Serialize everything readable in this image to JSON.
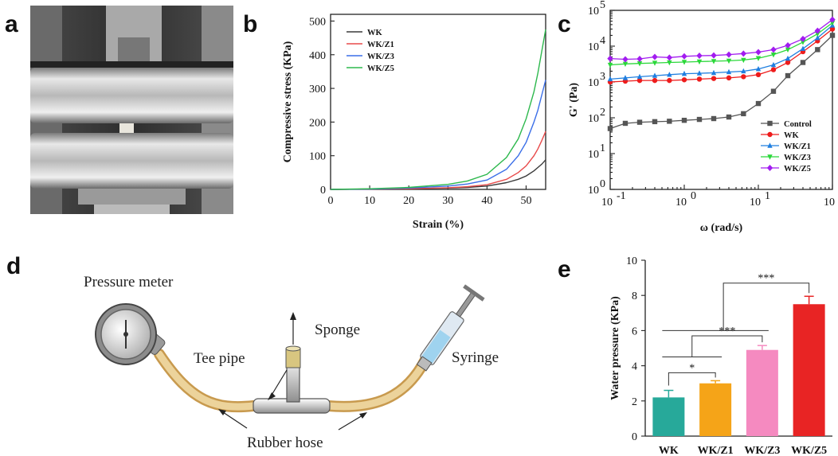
{
  "panels": {
    "a": "a",
    "b": "b",
    "c": "c",
    "d": "d",
    "e": "e"
  },
  "diagram": {
    "pressure_meter": "Pressure meter",
    "sponge": "Sponge",
    "tee_pipe": "Tee pipe",
    "syringe": "Syringe",
    "rubber_hose": "Rubber hose"
  },
  "chart_data": [
    {
      "type": "line",
      "ylabel": "Compressive stress (KPa)",
      "xlabel": "Strain (%)",
      "xlim": [
        0,
        55
      ],
      "ylim": [
        0,
        520
      ],
      "xticks": [
        0,
        10,
        20,
        30,
        40,
        50
      ],
      "yticks": [
        0,
        100,
        200,
        300,
        400,
        500
      ],
      "legend_position": "top-left",
      "series": [
        {
          "name": "WK",
          "color": "#3a3a3a",
          "x": [
            0,
            10,
            20,
            30,
            35,
            40,
            45,
            48,
            50,
            52,
            53,
            54,
            55
          ],
          "y": [
            0,
            1,
            2,
            4,
            6,
            10,
            20,
            30,
            40,
            55,
            65,
            75,
            88
          ]
        },
        {
          "name": "WK/Z1",
          "color": "#e84a4a",
          "x": [
            0,
            10,
            20,
            30,
            35,
            40,
            45,
            48,
            50,
            52,
            53,
            54,
            55
          ],
          "y": [
            0,
            1,
            2,
            5,
            8,
            14,
            30,
            50,
            70,
            100,
            120,
            145,
            172
          ]
        },
        {
          "name": "WK/Z3",
          "color": "#3a6ee8",
          "x": [
            0,
            10,
            20,
            30,
            35,
            40,
            45,
            48,
            50,
            52,
            53,
            54,
            55
          ],
          "y": [
            0,
            1,
            4,
            10,
            16,
            28,
            60,
            100,
            140,
            200,
            235,
            280,
            325
          ]
        },
        {
          "name": "WK/Z5",
          "color": "#2db84d",
          "x": [
            0,
            10,
            20,
            30,
            35,
            40,
            45,
            48,
            50,
            52,
            53,
            54,
            55
          ],
          "y": [
            0,
            2,
            6,
            15,
            25,
            45,
            95,
            150,
            210,
            290,
            345,
            410,
            475
          ]
        }
      ]
    },
    {
      "type": "line",
      "ylabel": "G' (Pa)",
      "xlabel": "ω  (rad/s)",
      "log_x": true,
      "log_y": true,
      "xlim": [
        0.1,
        100
      ],
      "ylim": [
        1,
        100000
      ],
      "xtick_labels": [
        "10",
        "10",
        "10",
        "10"
      ],
      "xtick_exponents": [
        "-1",
        "0",
        "1",
        "2"
      ],
      "ytick_labels": [
        "10",
        "10",
        "10",
        "10",
        "10",
        "10"
      ],
      "ytick_exponents": [
        "0",
        "1",
        "2",
        "3",
        "4",
        "5"
      ],
      "legend_position": "bottom-right",
      "series": [
        {
          "name": "Control",
          "color": "#555555",
          "marker": "square",
          "x": [
            0.1,
            0.16,
            0.25,
            0.4,
            0.63,
            1,
            1.6,
            2.5,
            4,
            6.3,
            10,
            16,
            25,
            40,
            63,
            100
          ],
          "y": [
            50,
            70,
            75,
            78,
            80,
            85,
            90,
            95,
            105,
            130,
            250,
            550,
            1500,
            3500,
            8000,
            20000
          ]
        },
        {
          "name": "WK",
          "color": "#ee1c1c",
          "marker": "circle",
          "x": [
            0.1,
            0.16,
            0.25,
            0.4,
            0.63,
            1,
            1.6,
            2.5,
            4,
            6.3,
            10,
            16,
            25,
            40,
            63,
            100
          ],
          "y": [
            1000,
            1050,
            1100,
            1100,
            1100,
            1150,
            1200,
            1250,
            1300,
            1400,
            1600,
            2200,
            3500,
            7000,
            14000,
            30000
          ]
        },
        {
          "name": "WK/Z1",
          "color": "#1f7fe0",
          "marker": "triangle-up",
          "x": [
            0.1,
            0.16,
            0.25,
            0.4,
            0.63,
            1,
            1.6,
            2.5,
            4,
            6.3,
            10,
            16,
            25,
            40,
            63,
            100
          ],
          "y": [
            1200,
            1300,
            1400,
            1500,
            1600,
            1700,
            1750,
            1800,
            1900,
            2000,
            2300,
            3000,
            4500,
            8500,
            17000,
            38000
          ]
        },
        {
          "name": "WK/Z3",
          "color": "#2bd83a",
          "marker": "triangle-down",
          "x": [
            0.1,
            0.16,
            0.25,
            0.4,
            0.63,
            1,
            1.6,
            2.5,
            4,
            6.3,
            10,
            16,
            25,
            40,
            63,
            100
          ],
          "y": [
            3000,
            3200,
            3300,
            3400,
            3500,
            3600,
            3700,
            3800,
            3900,
            4100,
            4600,
            5800,
            8000,
            13000,
            22000,
            45000
          ]
        },
        {
          "name": "WK/Z5",
          "color": "#a21cf0",
          "marker": "diamond",
          "x": [
            0.1,
            0.16,
            0.25,
            0.4,
            0.63,
            1,
            1.6,
            2.5,
            4,
            6.3,
            10,
            16,
            25,
            40,
            63,
            100
          ],
          "y": [
            4500,
            4300,
            4400,
            5000,
            4800,
            5200,
            5400,
            5500,
            5800,
            6200,
            6800,
            8000,
            10500,
            16000,
            27000,
            55000
          ]
        }
      ]
    },
    {
      "type": "bar",
      "ylabel": "Water pressure (KPa)",
      "categories": [
        "WK",
        "WK/Z1",
        "WK/Z3",
        "WK/Z5"
      ],
      "values": [
        2.2,
        3.0,
        4.9,
        7.5
      ],
      "errors": [
        0.4,
        0.15,
        0.25,
        0.45
      ],
      "colors": [
        "#27a99a",
        "#f5a418",
        "#f58ac0",
        "#e82424"
      ],
      "ylim": [
        0,
        10
      ],
      "yticks": [
        0,
        2,
        4,
        6,
        8,
        10
      ],
      "significance": [
        {
          "label": "*",
          "from": 0,
          "to": 1
        },
        {
          "label": "***",
          "from": 0,
          "to": 2
        },
        {
          "label": "***",
          "from": 0,
          "to": 3
        }
      ]
    }
  ]
}
